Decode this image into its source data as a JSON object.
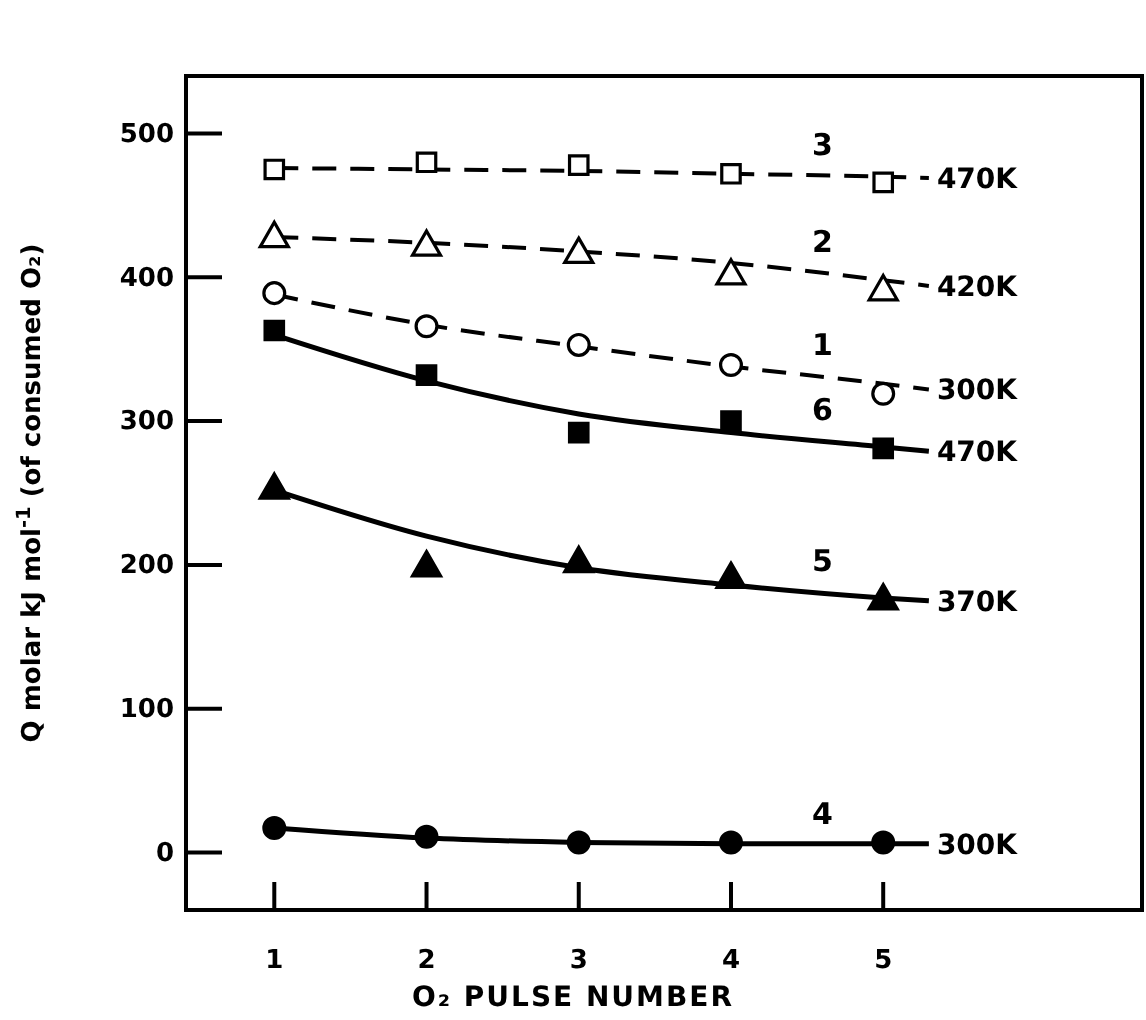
{
  "chart_data": {
    "type": "scatter",
    "xlabel": "O₂ PULSE NUMBER",
    "ylabel": "Q molar kJ mol$^{-1}$ (of consumed O₂)",
    "xlim": [
      0.42,
      6.7
    ],
    "ylim": [
      -40,
      540
    ],
    "xticks": [
      1,
      2,
      3,
      4,
      5
    ],
    "yticks": [
      0,
      100,
      200,
      300,
      400,
      500
    ],
    "grid": false,
    "series": [
      {
        "marker": "square",
        "color": "#000000",
        "x": [
          1,
          2,
          3,
          4,
          5
        ],
        "values": [
          475,
          480,
          478,
          472,
          466
        ]
      },
      {
        "marker": "triangle",
        "color": "#000000",
        "x": [
          1,
          2,
          3,
          4,
          5
        ],
        "values": [
          427,
          421,
          416,
          401,
          390
        ]
      },
      {
        "marker": "circle",
        "color": "#000000",
        "x": [
          1,
          2,
          3,
          4,
          5
        ],
        "values": [
          389,
          366,
          353,
          339,
          319
        ]
      },
      {
        "marker": "square",
        "color": "#000000",
        "x": [
          1,
          2,
          3,
          4,
          5
        ],
        "values": [
          363,
          332,
          292,
          300,
          281
        ]
      },
      {
        "marker": "triangle",
        "color": "#000000",
        "x": [
          1,
          2,
          3,
          4,
          5
        ],
        "values": [
          252,
          198,
          201,
          190,
          175
        ]
      },
      {
        "marker": "circle",
        "color": "#000000",
        "x": [
          1,
          2,
          3,
          4,
          5
        ],
        "values": [
          17,
          11,
          7,
          7,
          7
        ]
      },
      {
        "type": "line",
        "name": "3",
        "line_style": "dashed",
        "color": "#000000",
        "x": [
          1,
          2,
          3,
          4,
          5,
          5.3
        ],
        "values": [
          476,
          475,
          474,
          472,
          470,
          469
        ]
      },
      {
        "type": "line",
        "name": "2",
        "line_style": "dashed",
        "color": "#000000",
        "x": [
          1,
          2,
          3,
          4,
          5,
          5.3
        ],
        "values": [
          428,
          424,
          418,
          410,
          398,
          394
        ]
      },
      {
        "type": "line",
        "name": "1",
        "line_style": "dashed",
        "color": "#000000",
        "x": [
          1,
          2,
          3,
          4,
          5,
          5.3
        ],
        "values": [
          388,
          367,
          352,
          338,
          326,
          322
        ]
      },
      {
        "type": "line",
        "name": "6",
        "line_style": "solid",
        "color": "#000000",
        "x": [
          1,
          2,
          3,
          4,
          5,
          5.3
        ],
        "values": [
          360,
          328,
          305,
          292,
          282,
          279
        ]
      },
      {
        "type": "line",
        "name": "5",
        "line_style": "solid",
        "color": "#000000",
        "x": [
          1,
          2,
          3,
          4,
          5,
          5.3
        ],
        "values": [
          252,
          220,
          198,
          186,
          177,
          175
        ]
      },
      {
        "type": "line",
        "name": "4",
        "line_style": "solid",
        "color": "#000000",
        "x": [
          1,
          2,
          3,
          4,
          5,
          5.3
        ],
        "values": [
          17,
          10,
          7,
          6,
          6,
          6
        ]
      }
    ],
    "annotations": [
      "470K",
      "420K",
      "300K",
      "470K",
      "370K",
      "300K"
    ]
  }
}
